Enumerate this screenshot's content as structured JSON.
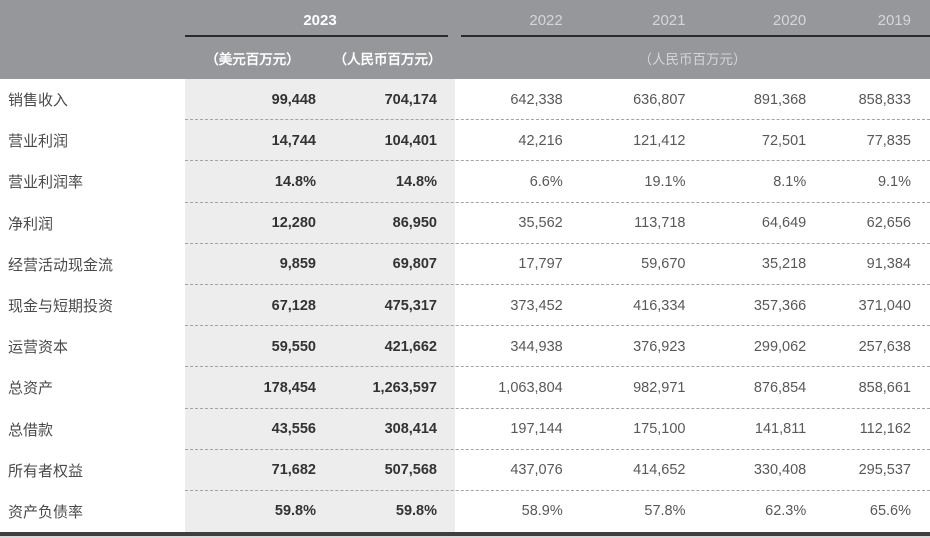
{
  "table": {
    "header": {
      "year_current": "2023",
      "years_prior": [
        "2022",
        "2021",
        "2020",
        "2019"
      ],
      "unit_usd": "（美元百万元）",
      "unit_rmb": "（人民币百万元）",
      "unit_prior": "（人民币百万元）"
    }
  },
  "chart_data": {
    "type": "table",
    "title": "",
    "columns": [
      "",
      "2023（美元百万元）",
      "2023（人民币百万元）",
      "2022（人民币百万元）",
      "2021（人民币百万元）",
      "2020（人民币百万元）",
      "2019（人民币百万元）"
    ],
    "rows": [
      [
        "销售收入",
        "99,448",
        "704,174",
        "642,338",
        "636,807",
        "891,368",
        "858,833"
      ],
      [
        "营业利润",
        "14,744",
        "104,401",
        "42,216",
        "121,412",
        "72,501",
        "77,835"
      ],
      [
        "营业利润率",
        "14.8%",
        "14.8%",
        "6.6%",
        "19.1%",
        "8.1%",
        "9.1%"
      ],
      [
        "净利润",
        "12,280",
        "86,950",
        "35,562",
        "113,718",
        "64,649",
        "62,656"
      ],
      [
        "经营活动现金流",
        "9,859",
        "69,807",
        "17,797",
        "59,670",
        "35,218",
        "91,384"
      ],
      [
        "现金与短期投资",
        "67,128",
        "475,317",
        "373,452",
        "416,334",
        "357,366",
        "371,040"
      ],
      [
        "运营资本",
        "59,550",
        "421,662",
        "344,938",
        "376,923",
        "299,062",
        "257,638"
      ],
      [
        "总资产",
        "178,454",
        "1,263,597",
        "1,063,804",
        "982,971",
        "876,854",
        "858,661"
      ],
      [
        "总借款",
        "43,556",
        "308,414",
        "197,144",
        "175,100",
        "141,811",
        "112,162"
      ],
      [
        "所有者权益",
        "71,682",
        "507,568",
        "437,076",
        "414,652",
        "330,408",
        "295,537"
      ],
      [
        "资产负债率",
        "59.8%",
        "59.8%",
        "58.9%",
        "57.8%",
        "62.3%",
        "65.6%"
      ]
    ]
  },
  "colors": {
    "header_bg": "#96979A",
    "header_text_current": "#FFFFFF",
    "header_text_prior": "#D5D6D7",
    "header_rule": "#2B2B2D",
    "highlight_col_bg": "#EDEDEE",
    "value_current": "#333335",
    "value_prior": "#58585A",
    "row_label": "#4A4A4B",
    "divider_dashed": "#A3A3A5",
    "bottom_rule": "#3F3F41",
    "bottom_edge": "#D9D9D9"
  }
}
